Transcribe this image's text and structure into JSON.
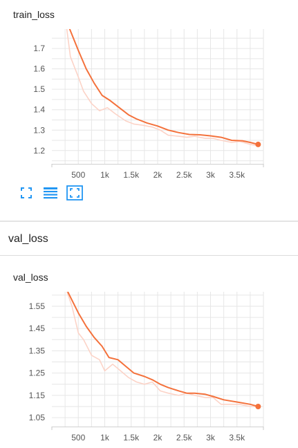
{
  "chart_data": [
    {
      "type": "line",
      "title": "train_loss",
      "xticks": [
        500,
        1000,
        1500,
        2000,
        2500,
        3000,
        3500
      ],
      "xtick_labels": [
        "500",
        "1k",
        "1.5k",
        "2k",
        "2.5k",
        "3k",
        "3.5k"
      ],
      "yticks": [
        1.2,
        1.3,
        1.4,
        1.5,
        1.6,
        1.7
      ],
      "ytick_labels": [
        "1.2",
        "1.3",
        "1.4",
        "1.5",
        "1.6",
        "1.7"
      ],
      "xlim": [
        0,
        4000
      ],
      "ylim": [
        1.135,
        1.795
      ],
      "grid": true,
      "series": [
        {
          "role": "raw",
          "color": "#fcd3c7",
          "x": [
            280,
            350,
            500,
            600,
            750,
            900,
            1050,
            1200,
            1400,
            1550,
            1700,
            1900,
            2050,
            2200,
            2400,
            2550,
            2700,
            2900,
            3050,
            3200,
            3400,
            3550,
            3750,
            3900
          ],
          "y": [
            1.8,
            1.66,
            1.56,
            1.49,
            1.43,
            1.395,
            1.41,
            1.38,
            1.345,
            1.33,
            1.325,
            1.315,
            1.3,
            1.275,
            1.27,
            1.265,
            1.27,
            1.26,
            1.26,
            1.25,
            1.24,
            1.245,
            1.23,
            1.225
          ]
        },
        {
          "role": "smoothed",
          "color": "#f4713b",
          "x": [
            330,
            500,
            650,
            800,
            950,
            1100,
            1300,
            1450,
            1600,
            1800,
            2000,
            2200,
            2400,
            2600,
            2800,
            3000,
            3200,
            3400,
            3600,
            3750,
            3900
          ],
          "y": [
            1.8,
            1.69,
            1.6,
            1.53,
            1.47,
            1.445,
            1.405,
            1.375,
            1.355,
            1.335,
            1.32,
            1.3,
            1.288,
            1.279,
            1.277,
            1.272,
            1.265,
            1.25,
            1.248,
            1.24,
            1.23
          ]
        }
      ]
    },
    {
      "type": "line",
      "title": "val_loss",
      "xticks": [
        500,
        1000,
        1500,
        2000,
        2500,
        3000,
        3500
      ],
      "xtick_labels": [
        "500",
        "1k",
        "1.5k",
        "2k",
        "2.5k",
        "3k",
        "3.5k"
      ],
      "yticks": [
        1.05,
        1.15,
        1.25,
        1.35,
        1.45,
        1.55
      ],
      "ytick_labels": [
        "1.05",
        "1.15",
        "1.25",
        "1.35",
        "1.45",
        "1.55"
      ],
      "xlim": [
        0,
        4000
      ],
      "ylim": [
        1.01,
        1.615
      ],
      "grid": true,
      "series": [
        {
          "role": "raw",
          "color": "#fcd3c7",
          "x": [
            280,
            380,
            500,
            600,
            750,
            900,
            1000,
            1150,
            1300,
            1450,
            1600,
            1750,
            1900,
            2050,
            2200,
            2400,
            2550,
            2700,
            2900,
            3050,
            3200,
            3400,
            3550,
            3750,
            3900
          ],
          "y": [
            1.62,
            1.55,
            1.43,
            1.4,
            1.33,
            1.31,
            1.26,
            1.29,
            1.26,
            1.23,
            1.21,
            1.2,
            1.21,
            1.17,
            1.16,
            1.15,
            1.16,
            1.15,
            1.14,
            1.14,
            1.11,
            1.11,
            1.11,
            1.1,
            1.1
          ]
        },
        {
          "role": "smoothed",
          "color": "#f4713b",
          "x": [
            300,
            500,
            650,
            800,
            950,
            1080,
            1250,
            1400,
            1550,
            1750,
            1900,
            2050,
            2200,
            2400,
            2550,
            2700,
            2900,
            3050,
            3250,
            3500,
            3750,
            3900
          ],
          "y": [
            1.615,
            1.52,
            1.46,
            1.41,
            1.37,
            1.32,
            1.31,
            1.28,
            1.25,
            1.235,
            1.22,
            1.2,
            1.185,
            1.17,
            1.16,
            1.16,
            1.155,
            1.145,
            1.13,
            1.12,
            1.11,
            1.1
          ]
        }
      ]
    }
  ],
  "group": {
    "title": "val_loss"
  },
  "toolbar": {
    "buttons": [
      {
        "icon": "fullscreen-icon",
        "color": "#2196f3"
      },
      {
        "icon": "data-table-icon",
        "color": "#2196f3"
      },
      {
        "icon": "fit-domain-icon",
        "color": "#2196f3"
      }
    ]
  }
}
